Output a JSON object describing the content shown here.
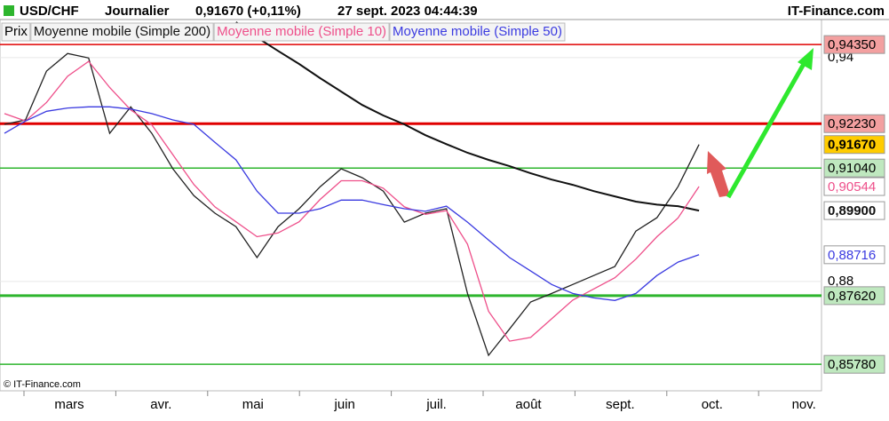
{
  "chart_data": {
    "type": "line",
    "header": {
      "symbol": "USD/CHF",
      "period": "Journalier",
      "quote": "0,91670 (+0,11%)",
      "datetime": "27 sept. 2023 04:44:39",
      "brand": "IT-Finance.com"
    },
    "footer": "© IT-Finance.com",
    "ylim": [
      0.8507,
      0.9502
    ],
    "yticks": [
      {
        "value": 0.94,
        "label": "0,94"
      },
      {
        "value": 0.88,
        "label": "0,88"
      }
    ],
    "xticks": [
      "mars",
      "avr.",
      "mai",
      "juin",
      "juil.",
      "août",
      "sept.",
      "oct.",
      "nov."
    ],
    "series": [
      {
        "name": "Prix",
        "color": "#222222",
        "last_label": "0,91670",
        "values": [
          0.9221,
          0.9233,
          0.9364,
          0.9411,
          0.9399,
          0.9197,
          0.9268,
          0.9197,
          0.9102,
          0.903,
          0.8983,
          0.8947,
          0.8864,
          0.8947,
          0.8995,
          0.9054,
          0.9102,
          0.9078,
          0.9042,
          0.8959,
          0.8983,
          0.8995,
          0.8768,
          0.8602,
          0.8673,
          0.8745,
          0.8768,
          0.8792,
          0.8816,
          0.884,
          0.8935,
          0.8971,
          0.9054,
          0.9167
        ]
      },
      {
        "name": "Moyenne mobile (Simple 200)",
        "color": "#111111",
        "last_label": "0,89900",
        "values": [
          null,
          null,
          null,
          null,
          null,
          null,
          null,
          null,
          null,
          null,
          null,
          0.9495,
          0.9454,
          0.9418,
          0.9383,
          0.9345,
          0.9309,
          0.9273,
          0.9245,
          0.9221,
          0.9192,
          0.9168,
          0.9145,
          0.9126,
          0.9109,
          0.909,
          0.9073,
          0.9059,
          0.9042,
          0.9028,
          0.9014,
          0.9006,
          0.9002,
          0.899
        ]
      },
      {
        "name": "Moyenne mobile (Simple 10)",
        "color": "#ee4f8a",
        "last_label": "0,90544",
        "values": [
          0.925,
          0.923,
          0.928,
          0.935,
          0.939,
          0.932,
          0.926,
          0.922,
          0.914,
          0.906,
          0.9,
          0.896,
          0.892,
          0.893,
          0.896,
          0.902,
          0.907,
          0.907,
          0.905,
          0.9,
          0.898,
          0.899,
          0.89,
          0.872,
          0.864,
          0.865,
          0.87,
          0.875,
          0.878,
          0.881,
          0.886,
          0.892,
          0.897,
          0.90544
        ]
      },
      {
        "name": "Moyenne mobile (Simple 50)",
        "color": "#3a3ae0",
        "last_label": "0,88716",
        "values": [
          0.9197,
          0.923,
          0.9256,
          0.9265,
          0.9268,
          0.9268,
          0.9262,
          0.925,
          0.9233,
          0.9221,
          0.9173,
          0.9126,
          0.9042,
          0.8983,
          0.8983,
          0.8995,
          0.9018,
          0.9018,
          0.9006,
          0.8995,
          0.8988,
          0.9002,
          0.8959,
          0.8911,
          0.8864,
          0.8828,
          0.8792,
          0.8768,
          0.8756,
          0.8749,
          0.8768,
          0.8816,
          0.8852,
          0.88716
        ]
      }
    ],
    "levels": [
      {
        "value": 0.9435,
        "label": "0,94350",
        "color": "#e00000",
        "style": "thin"
      },
      {
        "value": 0.9223,
        "label": "0,92230",
        "color": "#e00000",
        "style": "thick"
      },
      {
        "value": 0.9104,
        "label": "0,91040",
        "color": "#2db52d",
        "style": "thin"
      },
      {
        "value": 0.8762,
        "label": "0,87620",
        "color": "#2db52d",
        "style": "thick"
      },
      {
        "value": 0.8578,
        "label": "0,85780",
        "color": "#2db52d",
        "style": "thin"
      }
    ]
  }
}
